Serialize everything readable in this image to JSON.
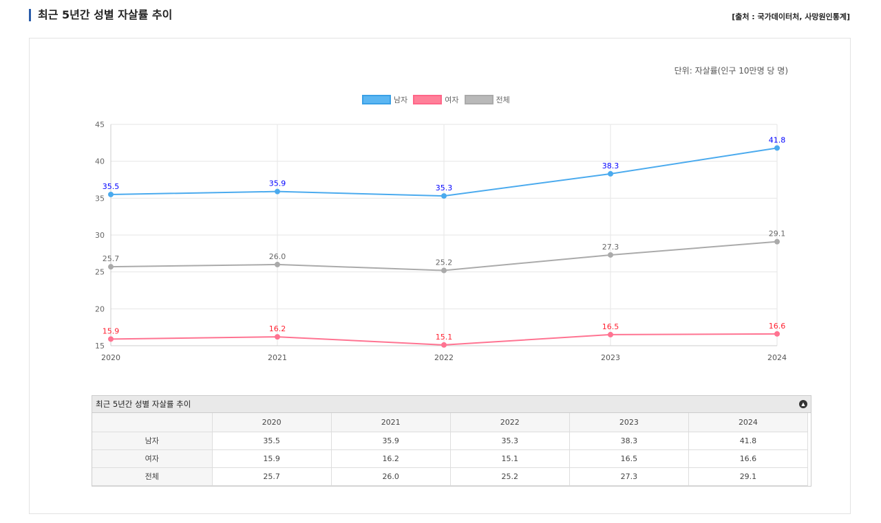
{
  "header": {
    "title": "최근 5년간 성별 자살률 추이",
    "source": "[출처 : 국가데이터처, 사망원인통계]"
  },
  "chart_data": {
    "type": "line",
    "unit_label": "단위: 자살률(인구 10만명 당 명)",
    "categories": [
      "2020",
      "2021",
      "2022",
      "2023",
      "2024"
    ],
    "ylim": [
      15,
      45
    ],
    "yticks": [
      "15",
      "20",
      "25",
      "30",
      "35",
      "40",
      "45"
    ],
    "grid": true,
    "legend_placement": "top-center",
    "series": [
      {
        "name": "남자",
        "color": "#4aaaee",
        "label_color": "#0000ff",
        "values": [
          35.5,
          35.9,
          35.3,
          38.3,
          41.8
        ],
        "labels": [
          "35.5",
          "35.9",
          "35.3",
          "38.3",
          "41.8"
        ]
      },
      {
        "name": "여자",
        "color": "#ff7391",
        "label_color": "#ff2030",
        "values": [
          15.9,
          16.2,
          15.1,
          16.5,
          16.6
        ],
        "labels": [
          "15.9",
          "16.2",
          "15.1",
          "16.5",
          "16.6"
        ]
      },
      {
        "name": "전체",
        "color": "#aaaaaa",
        "label_color": "#666666",
        "values": [
          25.7,
          26.0,
          25.2,
          27.3,
          29.1
        ],
        "labels": [
          "25.7",
          "26.0",
          "25.2",
          "27.3",
          "29.1"
        ]
      }
    ]
  },
  "table": {
    "caption": "최근 5년간 성별 자살률 추이",
    "columns": [
      "2020",
      "2021",
      "2022",
      "2023",
      "2024"
    ],
    "rows": [
      {
        "label": "남자",
        "values": [
          "35.5",
          "35.9",
          "35.3",
          "38.3",
          "41.8"
        ]
      },
      {
        "label": "여자",
        "values": [
          "15.9",
          "16.2",
          "15.1",
          "16.5",
          "16.6"
        ]
      },
      {
        "label": "전체",
        "values": [
          "25.7",
          "26.0",
          "25.2",
          "27.3",
          "29.1"
        ]
      }
    ]
  }
}
